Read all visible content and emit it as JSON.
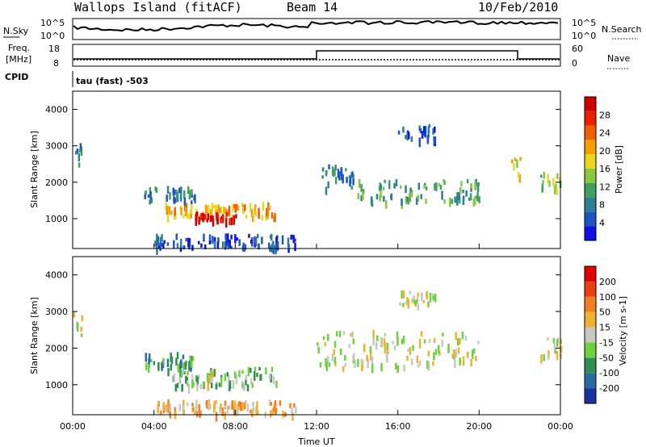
{
  "header": {
    "title": "Wallops Island (fitACF)",
    "beam": "Beam 14",
    "date": "10/Feb/2010"
  },
  "top_panels": {
    "nsky_label": "N.Sky",
    "nsearch_label": "N.Search",
    "nsky_ticks": [
      "10^5",
      "10^0"
    ],
    "nsearch_ticks": [
      "10^5",
      "10^0"
    ],
    "freq_label_top": "Freq.",
    "freq_label_bottom": "[MHz]",
    "freq_ticks": [
      "18",
      "8"
    ],
    "nave_label": "Nave",
    "nave_ticks": [
      "60",
      "0"
    ],
    "cpid_label": "CPID",
    "cpid_value": "tau (fast) -503"
  },
  "chart_data": [
    {
      "type": "heatmap",
      "name": "power",
      "ylabel": "Slant Range [km]",
      "yticks": [
        "4000",
        "3000",
        "2000",
        "1000"
      ],
      "xticks": [
        "00:00",
        "04:00",
        "08:00",
        "12:00",
        "16:00",
        "20:00",
        "00:00"
      ],
      "ylim": [
        180,
        4500
      ],
      "colorbar_label": "Power [dB]",
      "colorbar_ticks": [
        "28",
        "24",
        "20",
        "16",
        "12",
        "8",
        "4"
      ],
      "colors": [
        "#1010e0",
        "#1e55c0",
        "#2d7e96",
        "#3fa060",
        "#88c840",
        "#e8d820",
        "#f5a000",
        "#f06000",
        "#e82000",
        "#d00000"
      ],
      "regions": [
        {
          "t0": 0.0,
          "t1": 0.5,
          "r0": 2400,
          "r1": 3100,
          "level": 2
        },
        {
          "t0": 3.5,
          "t1": 6.0,
          "r0": 1500,
          "r1": 1900,
          "level": 2
        },
        {
          "t0": 4.5,
          "t1": 8.5,
          "r0": 1100,
          "r1": 1450,
          "level": 6
        },
        {
          "t0": 6.0,
          "t1": 8.0,
          "r0": 1000,
          "r1": 1200,
          "level": 9
        },
        {
          "t0": 8.5,
          "t1": 10.0,
          "r0": 1050,
          "r1": 1500,
          "level": 6
        },
        {
          "t0": 4.0,
          "t1": 11.0,
          "r0": 250,
          "r1": 600,
          "level": 1
        },
        {
          "t0": 12.0,
          "t1": 14.0,
          "r0": 1800,
          "r1": 2500,
          "level": 2
        },
        {
          "t0": 14.0,
          "t1": 20.0,
          "r0": 1500,
          "r1": 2100,
          "level": 3
        },
        {
          "t0": 16.0,
          "t1": 18.0,
          "r0": 3200,
          "r1": 3600,
          "level": 1
        },
        {
          "t0": 21.5,
          "t1": 22.0,
          "r0": 2200,
          "r1": 2700,
          "level": 5
        },
        {
          "t0": 23.0,
          "t1": 24.0,
          "r0": 1800,
          "r1": 2300,
          "level": 4
        }
      ]
    },
    {
      "type": "heatmap",
      "name": "velocity",
      "ylabel": "Slant Range [km]",
      "yticks": [
        "4000",
        "3000",
        "2000",
        "1000"
      ],
      "xticks": [
        "00:00",
        "04:00",
        "08:00",
        "12:00",
        "16:00",
        "20:00",
        "00:00"
      ],
      "xlabel": "Time UT",
      "ylim": [
        180,
        4500
      ],
      "colorbar_label": "Velocity [m s-1]",
      "colorbar_ticks": [
        "200",
        "100",
        "50",
        "15",
        "-15",
        "-50",
        "-100",
        "-200"
      ],
      "colors": [
        "#1a2fa0",
        "#2a6aa0",
        "#2f8f50",
        "#70d040",
        "#c8c8c0",
        "#f0b030",
        "#f08020",
        "#e84010",
        "#e00000"
      ],
      "regions": [
        {
          "t0": 0.0,
          "t1": 0.5,
          "r0": 2400,
          "r1": 3100,
          "level": 4
        },
        {
          "t0": 3.5,
          "t1": 6.0,
          "r0": 1500,
          "r1": 1900,
          "level": 2
        },
        {
          "t0": 4.5,
          "t1": 10.0,
          "r0": 1000,
          "r1": 1500,
          "level": 3
        },
        {
          "t0": 6.5,
          "t1": 7.0,
          "r0": 1000,
          "r1": 1400,
          "level": 4
        },
        {
          "t0": 4.0,
          "t1": 11.0,
          "r0": 250,
          "r1": 600,
          "level": 5
        },
        {
          "t0": 12.0,
          "t1": 20.0,
          "r0": 1500,
          "r1": 2500,
          "level": 4
        },
        {
          "t0": 16.0,
          "t1": 18.0,
          "r0": 3200,
          "r1": 3600,
          "level": 4
        },
        {
          "t0": 23.0,
          "t1": 24.0,
          "r0": 1800,
          "r1": 2300,
          "level": 4
        }
      ]
    }
  ]
}
